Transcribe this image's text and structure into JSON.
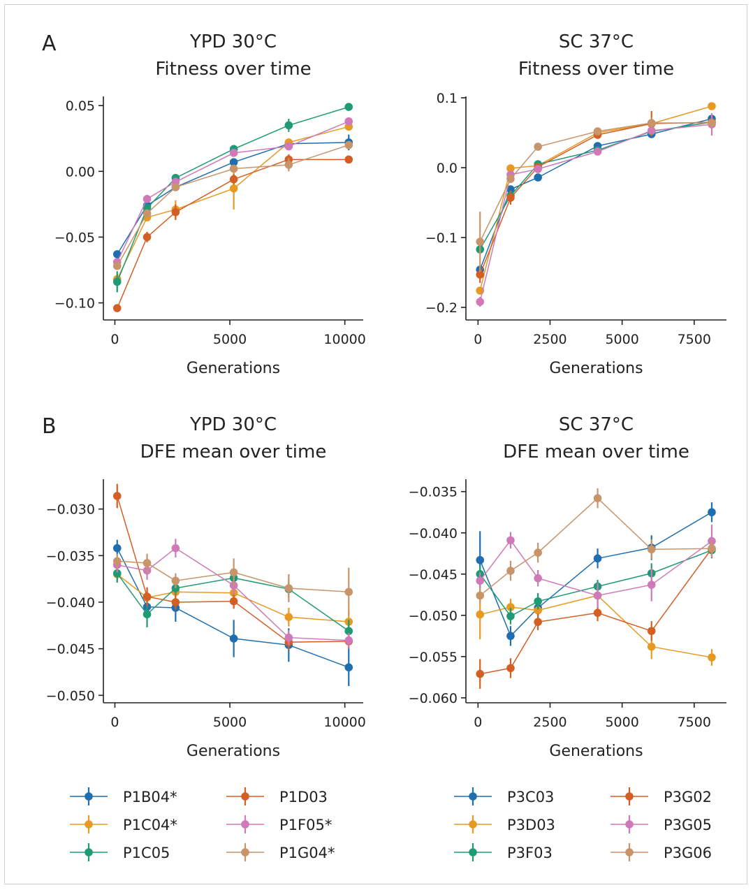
{
  "panel_letters": [
    "A",
    "B"
  ],
  "colors": {
    "blue": "#1f6fb0",
    "orange": "#e69a24",
    "green": "#1e9b74",
    "red": "#d35f24",
    "pink": "#cf79b8",
    "brown": "#c8946a"
  },
  "legends": [
    {
      "entries": [
        {
          "label": "P1B04*",
          "color": "#1f6fb0"
        },
        {
          "label": "P1D03",
          "color": "#d35f24"
        },
        {
          "label": "P1C04*",
          "color": "#e69a24"
        },
        {
          "label": "P1F05*",
          "color": "#cf79b8"
        },
        {
          "label": "P1C05",
          "color": "#1e9b74"
        },
        {
          "label": "P1G04*",
          "color": "#c8946a"
        }
      ]
    },
    {
      "entries": [
        {
          "label": "P3C03",
          "color": "#1f6fb0"
        },
        {
          "label": "P3G02",
          "color": "#d35f24"
        },
        {
          "label": "P3D03",
          "color": "#e69a24"
        },
        {
          "label": "P3G05",
          "color": "#cf79b8"
        },
        {
          "label": "P3F03",
          "color": "#1e9b74"
        },
        {
          "label": "P3G06",
          "color": "#c8946a"
        }
      ]
    }
  ],
  "chart_data": [
    {
      "type": "line",
      "title": [
        "YPD 30°C",
        "Fitness over time"
      ],
      "xlabel": "Generations",
      "ylabel": "",
      "xlim": [
        -500,
        10800
      ],
      "ylim": [
        -0.113,
        0.057
      ],
      "xticks": [
        0,
        5000,
        10000
      ],
      "xtick_labels": [
        "0",
        "5000",
        "10000"
      ],
      "yticks": [
        0.05,
        0.0,
        -0.05,
        -0.1
      ],
      "ytick_labels": [
        "0.05",
        "0.00",
        "−0.05",
        "−0.10"
      ],
      "x": [
        100,
        1400,
        2640,
        5170,
        7560,
        10170
      ],
      "series": [
        {
          "name": "P1B04*",
          "color": "#1f6fb0",
          "values": [
            -0.063,
            -0.026,
            -0.012,
            0.007,
            0.021,
            0.022
          ],
          "errors": [
            0.002,
            0.003,
            0.003,
            0.002,
            0.003,
            0.006
          ]
        },
        {
          "name": "P1C04*",
          "color": "#e69a24",
          "values": [
            -0.082,
            -0.035,
            -0.029,
            -0.013,
            0.022,
            0.034
          ],
          "errors": [
            0.004,
            0.003,
            0.007,
            0.016,
            0.003,
            0.003
          ]
        },
        {
          "name": "P1C05",
          "color": "#1e9b74",
          "values": [
            -0.084,
            -0.028,
            -0.005,
            0.017,
            0.035,
            0.049
          ],
          "errors": [
            0.008,
            0.003,
            0.002,
            0.002,
            0.005,
            0.002
          ]
        },
        {
          "name": "P1D03",
          "color": "#d35f24",
          "values": [
            -0.104,
            -0.05,
            -0.031,
            -0.006,
            0.009,
            0.009
          ],
          "errors": [
            0.002,
            0.004,
            0.006,
            0.004,
            0.004,
            0.003
          ]
        },
        {
          "name": "P1F05*",
          "color": "#cf79b8",
          "values": [
            -0.069,
            -0.021,
            -0.008,
            0.014,
            0.019,
            0.038
          ],
          "errors": [
            0.002,
            0.002,
            0.002,
            0.002,
            0.003,
            0.002
          ]
        },
        {
          "name": "P1G04*",
          "color": "#c8946a",
          "values": [
            -0.072,
            -0.032,
            -0.012,
            0.002,
            0.005,
            0.02
          ],
          "errors": [
            0.003,
            0.003,
            0.003,
            0.003,
            0.005,
            0.003
          ]
        }
      ]
    },
    {
      "type": "line",
      "title": [
        "SC 37°C",
        "Fitness over time"
      ],
      "xlabel": "Generations",
      "ylabel": "",
      "xlim": [
        -420,
        8620
      ],
      "ylim": [
        -0.218,
        0.102
      ],
      "xticks": [
        0,
        2500,
        5000,
        7500
      ],
      "xtick_labels": [
        "0",
        "2500",
        "5000",
        "7500"
      ],
      "yticks": [
        0.1,
        0.0,
        -0.1,
        -0.2
      ],
      "ytick_labels": [
        "0.1",
        "0.0",
        "−0.1",
        "−0.2"
      ],
      "x": [
        70,
        1130,
        2080,
        4150,
        6020,
        8110
      ],
      "series": [
        {
          "name": "P3C03",
          "color": "#1f6fb0",
          "values": [
            -0.146,
            -0.031,
            -0.014,
            0.031,
            0.048,
            0.07
          ],
          "errors": [
            0.005,
            0.004,
            0.003,
            0.003,
            0.004,
            0.003
          ]
        },
        {
          "name": "P3D03",
          "color": "#e69a24",
          "values": [
            -0.176,
            -0.001,
            0.003,
            0.05,
            0.063,
            0.088
          ],
          "errors": [
            0.005,
            0.004,
            0.003,
            0.004,
            0.004,
            0.003
          ]
        },
        {
          "name": "P3F03",
          "color": "#1e9b74",
          "values": [
            -0.117,
            -0.04,
            0.005,
            0.025,
            0.052,
            0.065
          ],
          "errors": [
            0.004,
            0.003,
            0.003,
            0.003,
            0.004,
            0.004
          ]
        },
        {
          "name": "P3G02",
          "color": "#d35f24",
          "values": [
            -0.153,
            -0.043,
            0.001,
            0.047,
            0.063,
            0.065
          ],
          "errors": [
            0.012,
            0.01,
            0.003,
            0.003,
            0.018,
            0.004
          ]
        },
        {
          "name": "P3G05",
          "color": "#cf79b8",
          "values": [
            -0.192,
            -0.01,
            -0.002,
            0.023,
            0.053,
            0.062
          ],
          "errors": [
            0.007,
            0.005,
            0.003,
            0.003,
            0.004,
            0.016
          ]
        },
        {
          "name": "P3G06",
          "color": "#c8946a",
          "values": [
            -0.106,
            -0.016,
            0.03,
            0.052,
            0.064,
            0.064
          ],
          "errors": [
            0.043,
            0.006,
            0.003,
            0.003,
            0.008,
            0.003
          ]
        }
      ]
    },
    {
      "type": "line",
      "title": [
        "YPD 30°C",
        "DFE mean over time"
      ],
      "xlabel": "Generations",
      "ylabel": "",
      "xlim": [
        -500,
        10800
      ],
      "ylim": [
        -0.0508,
        -0.0268
      ],
      "xticks": [
        0,
        5000,
        10000
      ],
      "xtick_labels": [
        "0",
        "5000",
        "10000"
      ],
      "yticks": [
        -0.03,
        -0.035,
        -0.04,
        -0.045,
        -0.05
      ],
      "ytick_labels": [
        "−0.030",
        "−0.035",
        "−0.040",
        "−0.045",
        "−0.050"
      ],
      "x": [
        100,
        1400,
        2640,
        5170,
        7560,
        10170
      ],
      "series": [
        {
          "name": "P1B04*",
          "color": "#1f6fb0",
          "values": [
            -0.0342,
            -0.0405,
            -0.0406,
            -0.0439,
            -0.0446,
            -0.047
          ],
          "errors": [
            0.0009,
            0.001,
            0.0015,
            0.002,
            0.0018,
            0.002
          ]
        },
        {
          "name": "P1C04*",
          "color": "#e69a24",
          "values": [
            -0.037,
            -0.0395,
            -0.0389,
            -0.039,
            -0.0416,
            -0.0421
          ],
          "errors": [
            0.0008,
            0.001,
            0.0008,
            0.0008,
            0.001,
            0.0012
          ]
        },
        {
          "name": "P1C05",
          "color": "#1e9b74",
          "values": [
            -0.0369,
            -0.0413,
            -0.0385,
            -0.0374,
            -0.0386,
            -0.0431
          ],
          "errors": [
            0.001,
            0.0014,
            0.0007,
            0.0007,
            0.001,
            0.0012
          ]
        },
        {
          "name": "P1D03",
          "color": "#d35f24",
          "values": [
            -0.0286,
            -0.0394,
            -0.04,
            -0.0399,
            -0.0443,
            -0.0442
          ],
          "errors": [
            0.0013,
            0.001,
            0.0008,
            0.0008,
            0.0008,
            0.0008
          ]
        },
        {
          "name": "P1F05*",
          "color": "#cf79b8",
          "values": [
            -0.036,
            -0.0366,
            -0.0342,
            -0.0382,
            -0.0438,
            -0.0441
          ],
          "errors": [
            0.0008,
            0.001,
            0.001,
            0.001,
            0.0008,
            0.0008
          ]
        },
        {
          "name": "P1G04*",
          "color": "#c8946a",
          "values": [
            -0.0356,
            -0.0358,
            -0.0377,
            -0.0368,
            -0.0385,
            -0.0389
          ],
          "errors": [
            0.0008,
            0.001,
            0.0008,
            0.0015,
            0.0015,
            0.0026
          ]
        }
      ]
    },
    {
      "type": "line",
      "title": [
        "SC 37°C",
        "DFE mean over time"
      ],
      "xlabel": "Generations",
      "ylabel": "",
      "xlim": [
        -420,
        8620
      ],
      "ylim": [
        -0.0606,
        -0.0335
      ],
      "xticks": [
        0,
        2500,
        5000,
        7500
      ],
      "xtick_labels": [
        "0",
        "2500",
        "5000",
        "7500"
      ],
      "yticks": [
        -0.035,
        -0.04,
        -0.045,
        -0.05,
        -0.055,
        -0.06
      ],
      "ytick_labels": [
        "−0.035",
        "−0.040",
        "−0.045",
        "−0.050",
        "−0.055",
        "−0.060"
      ],
      "x": [
        70,
        1130,
        2080,
        4150,
        6020,
        8110
      ],
      "series": [
        {
          "name": "P3C03",
          "color": "#1f6fb0",
          "values": [
            -0.0433,
            -0.0525,
            -0.0491,
            -0.0431,
            -0.0418,
            -0.0375
          ],
          "errors": [
            0.0035,
            0.0012,
            0.001,
            0.0012,
            0.0015,
            0.0012
          ]
        },
        {
          "name": "P3D03",
          "color": "#e69a24",
          "values": [
            -0.0499,
            -0.049,
            -0.0494,
            -0.0476,
            -0.0538,
            -0.0551
          ],
          "errors": [
            0.003,
            0.001,
            0.001,
            0.001,
            0.0015,
            0.001
          ]
        },
        {
          "name": "P3F03",
          "color": "#1e9b74",
          "values": [
            -0.045,
            -0.0501,
            -0.0483,
            -0.0465,
            -0.0449,
            -0.0421
          ],
          "errors": [
            0.001,
            0.001,
            0.001,
            0.0008,
            0.0012,
            0.001
          ]
        },
        {
          "name": "P3G02",
          "color": "#d35f24",
          "values": [
            -0.0571,
            -0.0564,
            -0.0508,
            -0.0497,
            -0.0519,
            -0.0419
          ],
          "errors": [
            0.0018,
            0.0012,
            0.001,
            0.001,
            0.0012,
            0.001
          ]
        },
        {
          "name": "P3G05",
          "color": "#cf79b8",
          "values": [
            -0.0458,
            -0.0409,
            -0.0455,
            -0.0476,
            -0.0463,
            -0.041
          ],
          "errors": [
            0.001,
            0.001,
            0.001,
            0.0015,
            0.002,
            0.002
          ]
        },
        {
          "name": "P3G06",
          "color": "#c8946a",
          "values": [
            -0.0476,
            -0.0446,
            -0.0424,
            -0.0358,
            -0.042,
            -0.0419
          ],
          "errors": [
            0.001,
            0.0012,
            0.0012,
            0.0012,
            0.0012,
            0.001
          ]
        }
      ]
    }
  ]
}
